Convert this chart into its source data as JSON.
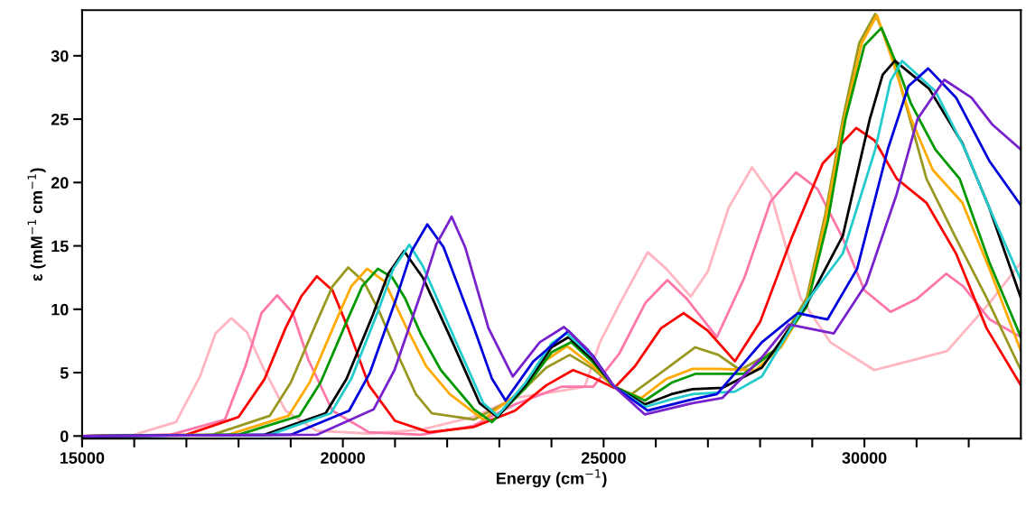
{
  "chart_data": {
    "type": "line",
    "xlabel": "Energy (cm$^{−1}$)",
    "ylabel": "ε (mM$^{−1}$ cm$^{−1}$)",
    "xlim": [
      15000,
      33000
    ],
    "ylim": [
      -0.2,
      33.6
    ],
    "xticks": [
      15000,
      {
        "value": 16000,
        "label": null
      },
      {
        "value": 17000,
        "label": null
      },
      {
        "value": 18000,
        "label": null
      },
      {
        "value": 19000,
        "label": null
      },
      20000,
      {
        "value": 21000,
        "label": null
      },
      {
        "value": 22000,
        "label": null
      },
      {
        "value": 23000,
        "label": null
      },
      {
        "value": 24000,
        "label": null
      },
      25000,
      {
        "value": 26000,
        "label": null
      },
      {
        "value": 27000,
        "label": null
      },
      {
        "value": 28000,
        "label": null
      },
      {
        "value": 29000,
        "label": null
      },
      30000,
      {
        "value": 31000,
        "label": null
      },
      {
        "value": 32000,
        "label": null
      }
    ],
    "yticks": [
      0,
      5,
      10,
      15,
      20,
      25,
      30
    ],
    "grid": false,
    "legend": false,
    "marker": "none",
    "line_style": "solid",
    "series": [
      {
        "color": "#ffb6c1",
        "x": [
          15000,
          16000,
          16800,
          17260,
          17560,
          17860,
          18160,
          18460,
          18900,
          19500,
          20500,
          21500,
          22500,
          23300,
          24240,
          24640,
          24930,
          25330,
          25845,
          26200,
          26670,
          27000,
          27396,
          27845,
          28206,
          28775,
          29345,
          30190,
          31585,
          32400,
          33000
        ],
        "values": [
          0,
          0.1,
          1.1,
          4.7,
          8.1,
          9.3,
          8.2,
          5.5,
          2.0,
          0.4,
          0.2,
          0.5,
          1.5,
          3.0,
          3.6,
          3.9,
          7.4,
          10.6,
          14.5,
          13.2,
          11.0,
          13.0,
          18.0,
          21.2,
          19.1,
          10.9,
          7.4,
          5.2,
          6.7,
          10.5,
          13.7
        ]
      },
      {
        "color": "#ff77aa",
        "x": [
          15000,
          16700,
          17740,
          18140,
          18440,
          18741,
          19040,
          19340,
          19800,
          20500,
          21500,
          22500,
          23300,
          24200,
          24800,
          25300,
          25800,
          26223,
          26600,
          27171,
          27700,
          28200,
          28690,
          29100,
          29586,
          30000,
          30500,
          31000,
          31568,
          31900,
          32400,
          33000
        ],
        "values": [
          0,
          0.1,
          1.3,
          5.6,
          9.7,
          11.1,
          9.7,
          6.0,
          2.0,
          0.3,
          0.1,
          0.8,
          2.5,
          3.9,
          3.9,
          6.5,
          10.5,
          12.3,
          10.8,
          7.8,
          12.5,
          18.5,
          20.8,
          19.5,
          15.6,
          11.5,
          9.8,
          10.8,
          12.8,
          11.8,
          9.2,
          7.8
        ]
      },
      {
        "color": "#ff0000",
        "x": [
          15000,
          17000,
          18000,
          18500,
          18900,
          19200,
          19500,
          19800,
          20100,
          20500,
          21000,
          21655,
          22500,
          23300,
          23900,
          24413,
          24800,
          25206,
          25600,
          26100,
          26533,
          27000,
          27517,
          28000,
          28602,
          29200,
          29843,
          30200,
          30620,
          31190,
          31757,
          32343,
          33000
        ],
        "values": [
          0,
          0.1,
          1.5,
          4.5,
          8.5,
          11.0,
          12.6,
          11.5,
          8.5,
          4.0,
          1.2,
          0.3,
          0.7,
          2.0,
          4.0,
          5.2,
          4.6,
          3.8,
          5.5,
          8.5,
          9.7,
          8.3,
          5.9,
          9.0,
          15.6,
          21.5,
          24.3,
          23.3,
          20.3,
          18.4,
          14.4,
          8.5,
          4.0
        ]
      },
      {
        "color": "#999922",
        "x": [
          15000,
          17500,
          18600,
          19000,
          19500,
          19800,
          20103,
          20400,
          20700,
          21100,
          21400,
          21707,
          22517,
          23300,
          23900,
          24350,
          24800,
          25200,
          25500,
          26100,
          26757,
          27200,
          27620,
          28300,
          28895,
          29250,
          29586,
          29900,
          30207,
          30500,
          30792,
          31190,
          31757,
          32343,
          33000
        ],
        "values": [
          0,
          0.1,
          1.6,
          4.2,
          9.0,
          11.8,
          13.3,
          12.2,
          9.8,
          6.0,
          3.3,
          1.8,
          1.3,
          3.0,
          5.4,
          6.4,
          5.3,
          3.9,
          3.2,
          5.0,
          7.0,
          6.4,
          5.2,
          6.8,
          10.9,
          17.5,
          25.0,
          31.0,
          33.3,
          30.5,
          26.2,
          20.3,
          15.6,
          10.9,
          5.2
        ]
      },
      {
        "color": "#ffaa00",
        "x": [
          15000,
          17800,
          18960,
          19360,
          19860,
          20160,
          20465,
          20800,
          21189,
          21600,
          22051,
          22690,
          23300,
          23900,
          24300,
          24800,
          25200,
          25723,
          26200,
          26706,
          27200,
          27913,
          28400,
          28895,
          29250,
          29586,
          29950,
          30240,
          30550,
          30896,
          31310,
          31878,
          32396,
          33000
        ],
        "values": [
          0,
          0.1,
          1.6,
          4.2,
          9.0,
          11.8,
          13.2,
          12.2,
          8.8,
          5.5,
          3.3,
          1.3,
          3.2,
          6.0,
          7.1,
          5.5,
          3.9,
          3.0,
          4.5,
          5.3,
          5.3,
          5.2,
          7.0,
          10.4,
          17.0,
          24.5,
          31.0,
          33.2,
          29.5,
          25.0,
          21.0,
          18.4,
          13.2,
          6.7
        ]
      },
      {
        "color": "#009900",
        "x": [
          15000,
          18000,
          19170,
          19570,
          20070,
          20370,
          20672,
          20950,
          21189,
          21500,
          21879,
          22517,
          22861,
          23500,
          24000,
          24378,
          24800,
          25200,
          25792,
          26300,
          26757,
          27690,
          28300,
          28895,
          29300,
          29637,
          30000,
          30327,
          30600,
          30896,
          31362,
          31826,
          32396,
          33000
        ],
        "values": [
          0,
          0.1,
          1.6,
          4.2,
          9.0,
          11.8,
          13.2,
          12.5,
          10.9,
          8.0,
          5.2,
          2.1,
          1.1,
          3.8,
          6.6,
          7.4,
          5.8,
          3.9,
          2.8,
          4.2,
          4.9,
          4.9,
          6.8,
          10.2,
          17.0,
          25.0,
          30.8,
          32.2,
          29.5,
          26.2,
          22.6,
          20.3,
          13.7,
          7.8
        ]
      },
      {
        "color": "#000000",
        "x": [
          15000,
          18500,
          19670,
          20070,
          20570,
          20870,
          21172,
          21534,
          22103,
          22620,
          22965,
          23500,
          24000,
          24327,
          24800,
          25200,
          25792,
          26300,
          26706,
          27275,
          28034,
          28895,
          29586,
          30103,
          30350,
          30585,
          31241,
          31878,
          32396,
          33000
        ],
        "values": [
          0,
          0.1,
          1.8,
          4.5,
          9.5,
          12.8,
          14.6,
          12.5,
          7.4,
          2.6,
          1.5,
          4.0,
          7.0,
          7.8,
          6.0,
          3.9,
          2.5,
          3.3,
          3.7,
          3.8,
          5.4,
          10.4,
          15.8,
          25.0,
          28.5,
          29.6,
          27.4,
          23.1,
          18.0,
          10.9
        ]
      },
      {
        "color": "#22cccc",
        "x": [
          15000,
          18600,
          19770,
          20170,
          20670,
          20970,
          21275,
          21534,
          22172,
          22690,
          22965,
          23500,
          24000,
          24292,
          24800,
          25200,
          25792,
          26300,
          26706,
          27517,
          28034,
          28895,
          29586,
          30207,
          30500,
          30723,
          31362,
          31930,
          32396,
          33000
        ],
        "values": [
          0,
          0.1,
          1.8,
          4.6,
          9.8,
          13.2,
          15.1,
          13.4,
          7.4,
          2.6,
          1.6,
          4.2,
          7.3,
          8.1,
          6.2,
          3.9,
          2.3,
          2.9,
          3.3,
          3.5,
          4.7,
          10.6,
          14.4,
          22.6,
          28.0,
          29.6,
          27.2,
          22.6,
          18.0,
          12.3
        ]
      },
      {
        "color": "#0000dd",
        "x": [
          15000,
          19000,
          20120,
          20520,
          21020,
          21320,
          21620,
          21931,
          22517,
          22861,
          23120,
          23655,
          24327,
          24800,
          25200,
          25844,
          26706,
          27172,
          28034,
          28724,
          29293,
          29861,
          30447,
          30844,
          31223,
          31757,
          32396,
          33000
        ],
        "values": [
          0,
          0.1,
          2.0,
          5.0,
          10.8,
          14.6,
          16.7,
          14.9,
          8.5,
          4.5,
          2.8,
          5.9,
          8.3,
          6.3,
          3.9,
          2.0,
          2.9,
          3.3,
          7.4,
          9.7,
          9.2,
          13.2,
          22.6,
          27.6,
          29.0,
          26.7,
          21.7,
          18.2
        ]
      },
      {
        "color": "#7722cc",
        "x": [
          15000,
          19500,
          20590,
          20990,
          21490,
          21790,
          22086,
          22345,
          22793,
          23258,
          23775,
          24240,
          24700,
          25200,
          25792,
          26706,
          27275,
          28034,
          28551,
          29413,
          30034,
          30620,
          31017,
          31533,
          32051,
          32447,
          33000
        ],
        "values": [
          0,
          0.1,
          2.1,
          5.2,
          11.2,
          15.1,
          17.3,
          14.9,
          8.5,
          4.7,
          7.4,
          8.6,
          6.8,
          3.9,
          1.7,
          2.6,
          3.0,
          6.2,
          8.8,
          8.1,
          12.0,
          19.1,
          25.0,
          28.1,
          26.7,
          24.6,
          22.6
        ]
      }
    ]
  }
}
